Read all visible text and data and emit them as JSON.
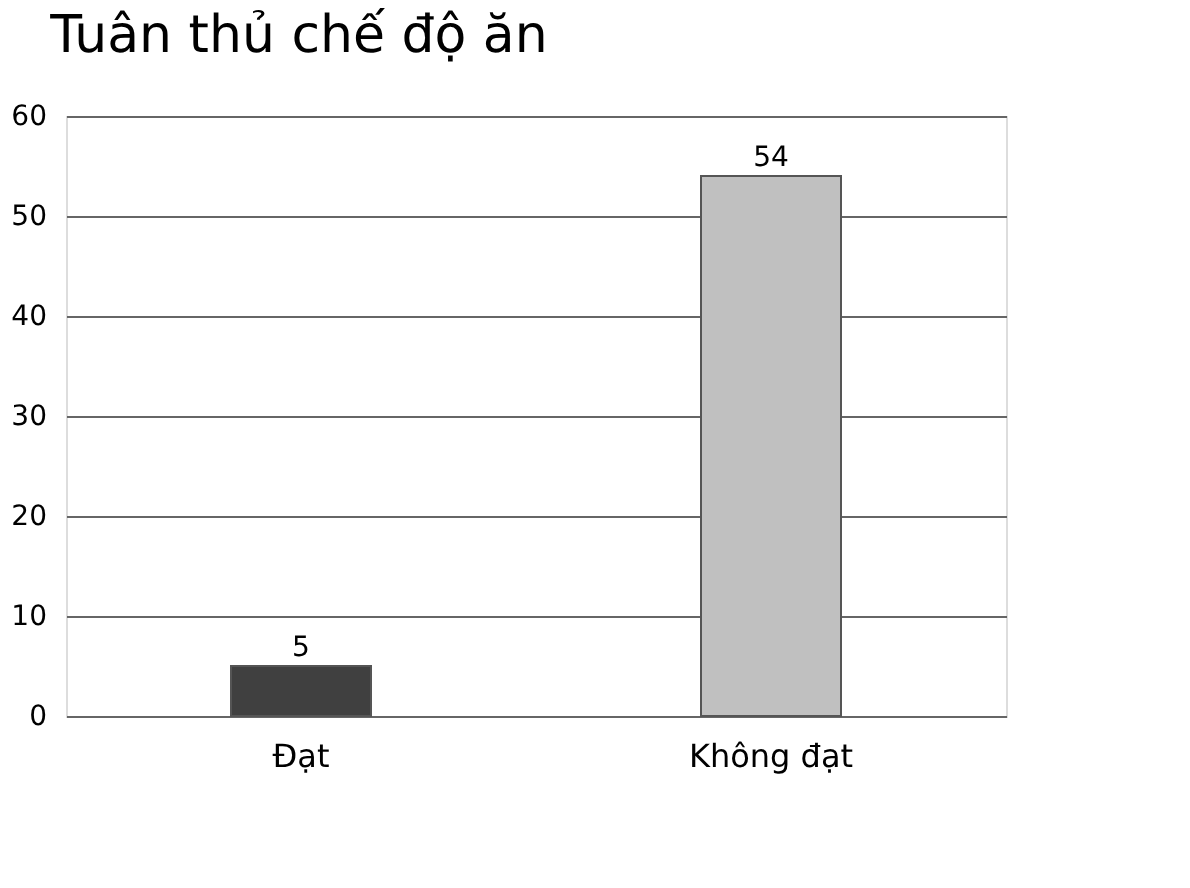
{
  "chart_data": {
    "type": "bar",
    "title": "Tuân thủ chế độ ăn",
    "categories": [
      "Đạt",
      "Không đạt"
    ],
    "values": [
      5,
      54
    ],
    "colors": [
      "#404040",
      "#c0c0c0"
    ],
    "ylim": [
      0,
      60
    ],
    "yticks": [
      0,
      10,
      20,
      30,
      40,
      50,
      60
    ],
    "grid": "y",
    "data_labels": true
  }
}
